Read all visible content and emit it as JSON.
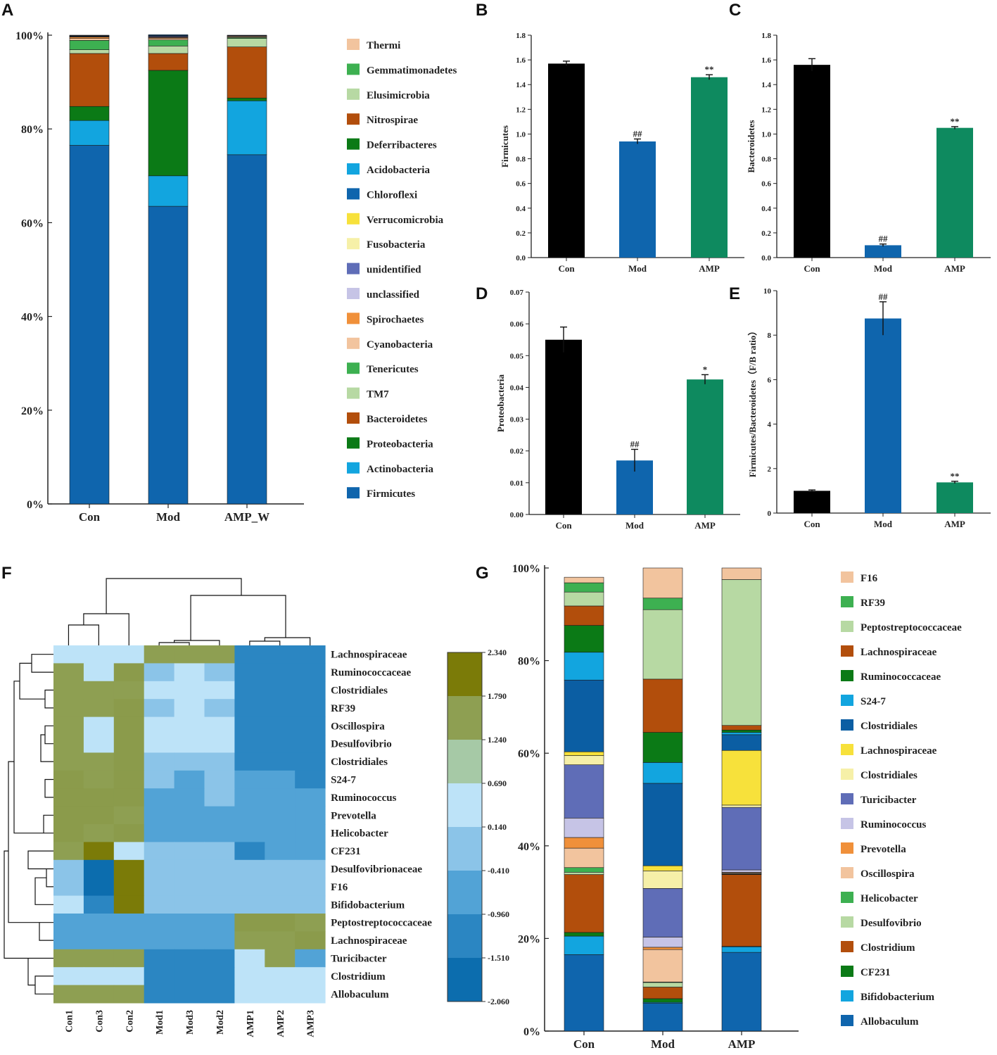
{
  "panels": {
    "A": {
      "letter": "A",
      "type": "stacked-bar",
      "yticks": [
        "0%",
        "20%",
        "40%",
        "60%",
        "80%",
        "100%"
      ],
      "categories": [
        "Con",
        "Mod",
        "AMP_W"
      ],
      "series": [
        {
          "name": "Firmicutes",
          "color": "#0f65ad",
          "values": [
            76.5,
            63.5,
            74.5
          ]
        },
        {
          "name": "Actinobacteria",
          "color": "#12a5df",
          "values": [
            5.3,
            6.5,
            11.5
          ]
        },
        {
          "name": "Proteobacteria",
          "color": "#0b7a16",
          "values": [
            3.0,
            22.5,
            0.6
          ]
        },
        {
          "name": "Bacteroidetes",
          "color": "#b24e0c",
          "values": [
            11.3,
            3.6,
            10.9
          ]
        },
        {
          "name": "TM7",
          "color": "#b7d9a3",
          "values": [
            0.8,
            1.6,
            1.8
          ]
        },
        {
          "name": "Tenericutes",
          "color": "#3db051",
          "values": [
            2.0,
            1.3,
            0.2
          ]
        },
        {
          "name": "Cyanobacteria",
          "color": "#f2c49e",
          "values": [
            0.4,
            0.3,
            0.2
          ]
        },
        {
          "name": "Spirochaetes",
          "color": "#f0903a",
          "values": [
            0.3,
            0.2,
            0.1
          ]
        },
        {
          "name": "unclassified",
          "color": "#c6c4e6",
          "values": [
            0.1,
            0.1,
            0.1
          ]
        },
        {
          "name": "unidentified",
          "color": "#5f6db7",
          "values": [
            0.1,
            0.2,
            0.1
          ]
        },
        {
          "name": "Fusobacteria",
          "color": "#f6f0a8",
          "values": [
            0.05,
            0.05,
            0.0
          ]
        },
        {
          "name": "Verrucomicrobia",
          "color": "#f7e13b",
          "values": [
            0.05,
            0.05,
            0.0
          ]
        },
        {
          "name": "Chloroflexi",
          "color": "#0b4f90",
          "values": [
            0.1,
            0.2,
            0.0
          ]
        }
      ],
      "legend": [
        "Thermi",
        "Gemmatimonadetes",
        "Elusimicrobia",
        "Nitrospirae",
        "Deferribacteres",
        "Acidobacteria",
        "Chloroflexi",
        "Verrucomicrobia",
        "Fusobacteria",
        "unidentified",
        "unclassified",
        "Spirochaetes",
        "Cyanobacteria",
        "Tenericutes",
        "TM7",
        "Bacteroidetes",
        "Proteobacteria",
        "Actinobacteria",
        "Firmicutes"
      ],
      "legend_colors": [
        "#f2c49e",
        "#3db051",
        "#b7d9a3",
        "#b24e0c",
        "#0b7a16",
        "#12a5df",
        "#0f65ad",
        "#f7e13b",
        "#f6f0a8",
        "#5f6db7",
        "#c6c4e6",
        "#f0903a",
        "#f2c49e",
        "#3db051",
        "#b7d9a3",
        "#b24e0c",
        "#0b7a16",
        "#12a5df",
        "#0f65ad"
      ]
    },
    "B": {
      "letter": "B",
      "type": "bar",
      "ylabel": "Firmicutes",
      "yticks": [
        "0.0",
        "0.2",
        "0.4",
        "0.6",
        "0.8",
        "1.0",
        "1.2",
        "1.4",
        "1.6",
        "1.8"
      ],
      "ylim": [
        0,
        1.8
      ],
      "categories": [
        "Con",
        "Mod",
        "AMP"
      ],
      "values": [
        1.57,
        0.94,
        1.46
      ],
      "errors": [
        0.02,
        0.02,
        0.02
      ],
      "labels": [
        "",
        "##",
        "**"
      ]
    },
    "C": {
      "letter": "C",
      "type": "bar",
      "ylabel": "Bacteroidetes",
      "yticks": [
        "0.0",
        "0.2",
        "0.4",
        "0.6",
        "0.8",
        "1.0",
        "1.2",
        "1.4",
        "1.6",
        "1.8"
      ],
      "ylim": [
        0,
        1.8
      ],
      "categories": [
        "Con",
        "Mod",
        "AMP"
      ],
      "values": [
        1.56,
        0.1,
        1.05
      ],
      "errors": [
        0.05,
        0.01,
        0.01
      ],
      "labels": [
        "",
        "##",
        "**"
      ]
    },
    "D": {
      "letter": "D",
      "type": "bar",
      "ylabel": "Proteobacteria",
      "yticks": [
        "0.00",
        "0.01",
        "0.02",
        "0.03",
        "0.04",
        "0.05",
        "0.06",
        "0.07"
      ],
      "ylim": [
        0,
        0.07
      ],
      "categories": [
        "Con",
        "Mod",
        "AMP"
      ],
      "values": [
        0.055,
        0.017,
        0.0425
      ],
      "errors": [
        0.004,
        0.0035,
        0.0015
      ],
      "labels": [
        "",
        "##",
        "*"
      ]
    },
    "E": {
      "letter": "E",
      "type": "bar",
      "ylabel": "Firmicutes/Bacteroidetes（F/B ratio）",
      "yticks": [
        "0",
        "2",
        "4",
        "6",
        "8",
        "10"
      ],
      "ylim": [
        0,
        10
      ],
      "categories": [
        "Con",
        "Mod",
        "AMP"
      ],
      "values": [
        1.0,
        8.75,
        1.38
      ],
      "errors": [
        0.04,
        0.75,
        0.05
      ],
      "labels": [
        "",
        "##",
        "**"
      ]
    },
    "F": {
      "letter": "F",
      "type": "heatmap",
      "columns": [
        "Con1",
        "Con3",
        "Con2",
        "Mod1",
        "Mod3",
        "Mod2",
        "AMP1",
        "AMP2",
        "AMP3"
      ],
      "rows": [
        "Lachnospiraceae",
        "Ruminococcaceae",
        "Clostridiales",
        "RF39",
        "Oscillospira",
        "Desulfovibrio",
        "Clostridiales",
        "S24-7",
        "Ruminococcus",
        "Prevotella",
        "Helicobacter",
        "CF231",
        "Desulfovibrionaceae",
        "F16",
        "Bifidobacterium",
        "Peptostreptococcaceae",
        "Lachnospiraceae",
        "Turicibacter",
        "Clostridium",
        "Allobaculum"
      ],
      "matrix": [
        [
          4,
          4,
          4,
          6,
          6,
          6,
          1,
          1,
          1
        ],
        [
          6,
          4,
          7,
          3,
          4,
          3,
          1,
          1,
          1
        ],
        [
          6,
          6,
          6,
          4,
          4,
          4,
          1,
          1,
          1
        ],
        [
          6,
          6,
          7,
          3,
          4,
          3,
          1,
          1,
          1
        ],
        [
          6,
          4,
          7,
          4,
          4,
          4,
          1,
          1,
          1
        ],
        [
          6,
          4,
          7,
          4,
          4,
          4,
          1,
          1,
          1
        ],
        [
          6,
          6,
          7,
          3,
          3,
          3,
          1,
          1,
          1
        ],
        [
          7,
          6,
          7,
          3,
          2,
          3,
          2,
          2,
          1
        ],
        [
          7,
          7,
          7,
          2,
          2,
          3,
          2,
          2,
          2
        ],
        [
          7,
          7,
          6,
          2,
          2,
          2,
          2,
          2,
          2
        ],
        [
          7,
          6,
          7,
          2,
          2,
          2,
          2,
          2,
          2
        ],
        [
          6,
          8,
          4,
          3,
          3,
          3,
          1,
          2,
          2
        ],
        [
          3,
          0,
          8,
          3,
          3,
          3,
          3,
          3,
          3
        ],
        [
          3,
          0,
          8,
          3,
          3,
          3,
          3,
          3,
          3
        ],
        [
          4,
          1,
          8,
          3,
          3,
          3,
          3,
          3,
          3
        ],
        [
          2,
          2,
          2,
          2,
          2,
          2,
          7,
          7,
          6
        ],
        [
          2,
          2,
          2,
          2,
          2,
          2,
          6,
          6,
          7
        ],
        [
          6,
          6,
          6,
          1,
          1,
          1,
          4,
          6,
          2
        ],
        [
          4,
          4,
          4,
          1,
          1,
          1,
          4,
          4,
          4
        ],
        [
          6,
          6,
          6,
          1,
          1,
          1,
          4,
          4,
          4
        ]
      ],
      "palette": [
        "#0c6dae",
        "#2b86c2",
        "#52a3d6",
        "#8bc4e8",
        "#bde3f8",
        "#a6c9a6",
        "#8e9f52",
        "#8b9b4b",
        "#7b7b08"
      ],
      "scale_labels": [
        "2.340",
        "1.790",
        "1.240",
        "0.690",
        "0.140",
        "-0.410",
        "-0.960",
        "-1.510",
        "-2.060"
      ],
      "scale_colors": [
        "#7b7b08",
        "#8e9f52",
        "#a6c9a6",
        "#bde3f8",
        "#8bc4e8",
        "#52a3d6",
        "#2b86c2",
        "#0c6dae"
      ]
    },
    "G": {
      "letter": "G",
      "type": "stacked-bar",
      "yticks": [
        "0%",
        "20%",
        "40%",
        "60%",
        "80%",
        "100%"
      ],
      "categories": [
        "Con",
        "Mod",
        "AMP"
      ],
      "series": [
        {
          "name": "Allobaculum",
          "color": "#0f65ad",
          "values": [
            16.5,
            6.0,
            17.0
          ]
        },
        {
          "name": "Bifidobacterium",
          "color": "#12a5df",
          "values": [
            4.0,
            0.2,
            1.2
          ]
        },
        {
          "name": "CF231",
          "color": "#0b7a16",
          "values": [
            0.8,
            0.8,
            0.1
          ]
        },
        {
          "name": "Clostridium",
          "color": "#b24e0c",
          "values": [
            12.5,
            2.5,
            15.5
          ]
        },
        {
          "name": "Desulfovibrio",
          "color": "#b7d9a3",
          "values": [
            0.5,
            1.0,
            0.1
          ]
        },
        {
          "name": "Helicobacter",
          "color": "#3db051",
          "values": [
            1.0,
            0.1,
            0.1
          ]
        },
        {
          "name": "Oscillospira",
          "color": "#f2c49e",
          "values": [
            4.2,
            7.0,
            0.2
          ]
        },
        {
          "name": "Prevotella",
          "color": "#f0903a",
          "values": [
            2.3,
            0.5,
            0.1
          ]
        },
        {
          "name": "Ruminococcus",
          "color": "#c6c4e6",
          "values": [
            4.2,
            2.2,
            0.5
          ]
        },
        {
          "name": "Turicibacter",
          "color": "#5f6db7",
          "values": [
            11.5,
            10.5,
            13.5
          ]
        },
        {
          "name": "Clostridiales",
          "color": "#f6f0a8",
          "values": [
            2.0,
            3.8,
            0.5
          ]
        },
        {
          "name": "Lachnospiraceae",
          "color": "#f7e13b",
          "values": [
            0.8,
            1.1,
            11.8
          ]
        },
        {
          "name": "Clostridiales",
          "color": "#0b5ea3",
          "values": [
            15.5,
            17.8,
            3.4
          ]
        },
        {
          "name": "S24-7",
          "color": "#12a5df",
          "values": [
            6.0,
            4.5,
            0.5
          ]
        },
        {
          "name": "Ruminococcaceae",
          "color": "#0b7a16",
          "values": [
            5.8,
            6.5,
            0.5
          ]
        },
        {
          "name": "Lachnospiraceae",
          "color": "#b24e0c",
          "values": [
            4.2,
            11.5,
            1.0
          ]
        },
        {
          "name": "Peptostreptococcaceae",
          "color": "#b7d9a3",
          "values": [
            3.0,
            15.0,
            31.5
          ]
        },
        {
          "name": "RF39",
          "color": "#3db051",
          "values": [
            2.0,
            2.5,
            0.0
          ]
        },
        {
          "name": "F16",
          "color": "#f2c49e",
          "values": [
            1.2,
            6.5,
            2.5
          ]
        }
      ],
      "legend": [
        "F16",
        "RF39",
        "Peptostreptococcaceae",
        "Lachnospiraceae",
        "Ruminococcaceae",
        "S24-7",
        "Clostridiales",
        "Lachnospiraceae",
        "Clostridiales",
        "Turicibacter",
        "Ruminococcus",
        "Prevotella",
        "Oscillospira",
        "Helicobacter",
        "Desulfovibrio",
        "Clostridium",
        "CF231",
        "Bifidobacterium",
        "Allobaculum"
      ],
      "legend_colors": [
        "#f2c49e",
        "#3db051",
        "#b7d9a3",
        "#b24e0c",
        "#0b7a16",
        "#12a5df",
        "#0b5ea3",
        "#f7e13b",
        "#f6f0a8",
        "#5f6db7",
        "#c6c4e6",
        "#f0903a",
        "#f2c49e",
        "#3db051",
        "#b7d9a3",
        "#b24e0c",
        "#0b7a16",
        "#12a5df",
        "#0f65ad"
      ]
    }
  },
  "bar_colors": [
    "#000000",
    "#0f65ad",
    "#0e8a5f"
  ]
}
